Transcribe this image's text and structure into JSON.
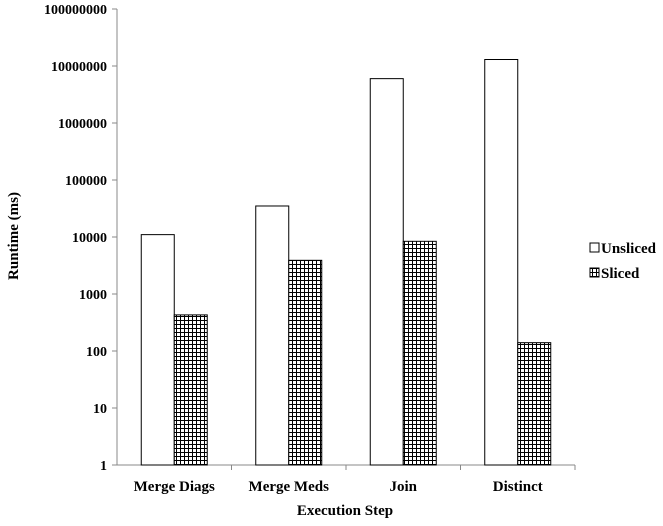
{
  "chart_data": {
    "type": "bar",
    "scale": "log",
    "categories": [
      "Merge Diags",
      "Merge Meds",
      "Join",
      "Distinct"
    ],
    "series": [
      {
        "name": "Unsliced",
        "values": [
          11000,
          35000,
          6000000,
          13000000
        ],
        "pattern": "none"
      },
      {
        "name": "Sliced",
        "values": [
          430,
          3900,
          8400,
          140
        ],
        "pattern": "grid"
      }
    ],
    "xlabel": "Execution Step",
    "ylabel": "Runtime (ms)",
    "ylim": [
      1,
      100000000
    ],
    "yticks": [
      "1",
      "10",
      "100",
      "1000",
      "10000",
      "100000",
      "1000000",
      "10000000",
      "100000000"
    ],
    "grid": false,
    "legend_position": "right",
    "colors": {
      "bar_stroke": "#000000",
      "bar_fill": "#ffffff",
      "axis": "#888888"
    }
  }
}
